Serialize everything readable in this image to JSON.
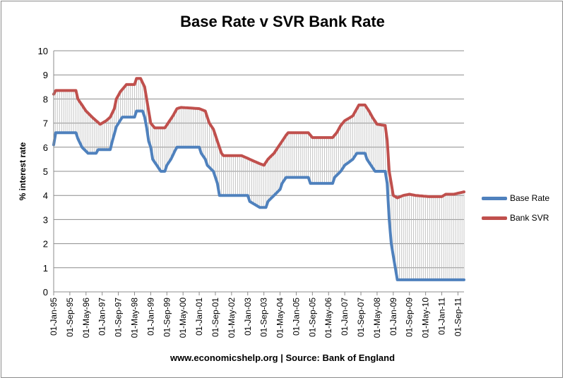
{
  "chart_data": {
    "type": "line",
    "title": "Base Rate v SVR Bank Rate",
    "ylabel": "% interest rate",
    "xlabel": "",
    "ylim": [
      0,
      10
    ],
    "yticks": [
      0,
      1,
      2,
      3,
      4,
      5,
      6,
      7,
      8,
      9,
      10
    ],
    "grid": true,
    "legend_position": "right",
    "source_note": "www.economicshelp.org | Source: Bank of England",
    "xticks": [
      "01-Jan-95",
      "01-Sep-95",
      "01-May-96",
      "01-Jan-97",
      "01-Sep-97",
      "01-May-98",
      "01-Jan-99",
      "01-Sep-99",
      "01-May-00",
      "01-Jan-01",
      "01-Sep-01",
      "01-May-02",
      "01-Jan-03",
      "01-Sep-03",
      "01-May-04",
      "01-Jan-05",
      "01-Sep-05",
      "01-May-06",
      "01-Jan-07",
      "01-Sep-07",
      "01-May-08",
      "01-Jan-09",
      "01-Sep-09",
      "01-May-10",
      "01-Jan-11",
      "01-Sep-11"
    ],
    "x_start": "1995-01",
    "x_end": "2011-12",
    "series": [
      {
        "name": "Base Rate",
        "color": "#4f81bd",
        "points": [
          [
            "1995-01",
            6.1
          ],
          [
            "1995-02",
            6.6
          ],
          [
            "1995-12",
            6.6
          ],
          [
            "1996-01",
            6.35
          ],
          [
            "1996-03",
            6.0
          ],
          [
            "1996-06",
            5.75
          ],
          [
            "1996-10",
            5.75
          ],
          [
            "1996-11",
            5.9
          ],
          [
            "1997-05",
            5.9
          ],
          [
            "1997-06",
            6.25
          ],
          [
            "1997-08",
            6.85
          ],
          [
            "1997-11",
            7.25
          ],
          [
            "1998-05",
            7.25
          ],
          [
            "1998-06",
            7.5
          ],
          [
            "1998-09",
            7.5
          ],
          [
            "1998-10",
            7.25
          ],
          [
            "1998-11",
            6.8
          ],
          [
            "1998-12",
            6.25
          ],
          [
            "1999-01",
            6.0
          ],
          [
            "1999-02",
            5.5
          ],
          [
            "1999-04",
            5.25
          ],
          [
            "1999-06",
            5.0
          ],
          [
            "1999-08",
            5.0
          ],
          [
            "1999-09",
            5.25
          ],
          [
            "1999-11",
            5.5
          ],
          [
            "2000-01",
            5.85
          ],
          [
            "2000-02",
            6.0
          ],
          [
            "2001-01",
            6.0
          ],
          [
            "2001-02",
            5.75
          ],
          [
            "2001-04",
            5.5
          ],
          [
            "2001-05",
            5.25
          ],
          [
            "2001-08",
            5.0
          ],
          [
            "2001-09",
            4.75
          ],
          [
            "2001-10",
            4.5
          ],
          [
            "2001-11",
            4.0
          ],
          [
            "2003-01",
            4.0
          ],
          [
            "2003-02",
            3.75
          ],
          [
            "2003-07",
            3.5
          ],
          [
            "2003-10",
            3.5
          ],
          [
            "2003-11",
            3.75
          ],
          [
            "2004-02",
            4.0
          ],
          [
            "2004-05",
            4.25
          ],
          [
            "2004-06",
            4.5
          ],
          [
            "2004-08",
            4.75
          ],
          [
            "2005-07",
            4.75
          ],
          [
            "2005-08",
            4.5
          ],
          [
            "2006-07",
            4.5
          ],
          [
            "2006-08",
            4.75
          ],
          [
            "2006-11",
            5.0
          ],
          [
            "2007-01",
            5.25
          ],
          [
            "2007-05",
            5.5
          ],
          [
            "2007-07",
            5.75
          ],
          [
            "2007-11",
            5.75
          ],
          [
            "2007-12",
            5.5
          ],
          [
            "2008-02",
            5.25
          ],
          [
            "2008-04",
            5.0
          ],
          [
            "2008-09",
            5.0
          ],
          [
            "2008-10",
            4.5
          ],
          [
            "2008-11",
            3.0
          ],
          [
            "2008-12",
            2.0
          ],
          [
            "2009-01",
            1.5
          ],
          [
            "2009-02",
            1.0
          ],
          [
            "2009-03",
            0.5
          ],
          [
            "2011-12",
            0.5
          ]
        ]
      },
      {
        "name": "Bank SVR",
        "color": "#c0504d",
        "points": [
          [
            "1995-01",
            8.2
          ],
          [
            "1995-02",
            8.35
          ],
          [
            "1995-12",
            8.35
          ],
          [
            "1996-01",
            8.0
          ],
          [
            "1996-03",
            7.75
          ],
          [
            "1996-05",
            7.5
          ],
          [
            "1996-08",
            7.25
          ],
          [
            "1996-10",
            7.1
          ],
          [
            "1996-12",
            6.95
          ],
          [
            "1997-03",
            7.1
          ],
          [
            "1997-05",
            7.25
          ],
          [
            "1997-07",
            7.6
          ],
          [
            "1997-08",
            8.0
          ],
          [
            "1997-10",
            8.3
          ],
          [
            "1997-12",
            8.5
          ],
          [
            "1998-01",
            8.6
          ],
          [
            "1998-05",
            8.6
          ],
          [
            "1998-06",
            8.85
          ],
          [
            "1998-08",
            8.85
          ],
          [
            "1998-10",
            8.5
          ],
          [
            "1998-11",
            8.0
          ],
          [
            "1998-12",
            7.5
          ],
          [
            "1999-01",
            7.0
          ],
          [
            "1999-03",
            6.8
          ],
          [
            "1999-08",
            6.8
          ],
          [
            "1999-10",
            7.05
          ],
          [
            "1999-12",
            7.3
          ],
          [
            "2000-02",
            7.6
          ],
          [
            "2000-04",
            7.65
          ],
          [
            "2001-01",
            7.6
          ],
          [
            "2001-04",
            7.5
          ],
          [
            "2001-06",
            7.0
          ],
          [
            "2001-08",
            6.75
          ],
          [
            "2001-10",
            6.25
          ],
          [
            "2001-12",
            5.75
          ],
          [
            "2002-01",
            5.65
          ],
          [
            "2002-10",
            5.65
          ],
          [
            "2003-02",
            5.5
          ],
          [
            "2003-06",
            5.35
          ],
          [
            "2003-09",
            5.25
          ],
          [
            "2003-11",
            5.5
          ],
          [
            "2004-02",
            5.75
          ],
          [
            "2004-04",
            6.0
          ],
          [
            "2004-06",
            6.25
          ],
          [
            "2004-08",
            6.5
          ],
          [
            "2004-09",
            6.6
          ],
          [
            "2005-07",
            6.6
          ],
          [
            "2005-09",
            6.4
          ],
          [
            "2006-07",
            6.4
          ],
          [
            "2006-09",
            6.6
          ],
          [
            "2006-11",
            6.9
          ],
          [
            "2007-01",
            7.1
          ],
          [
            "2007-05",
            7.3
          ],
          [
            "2007-07",
            7.6
          ],
          [
            "2007-08",
            7.75
          ],
          [
            "2007-11",
            7.75
          ],
          [
            "2008-01",
            7.5
          ],
          [
            "2008-03",
            7.2
          ],
          [
            "2008-05",
            6.95
          ],
          [
            "2008-09",
            6.9
          ],
          [
            "2008-10",
            6.3
          ],
          [
            "2008-11",
            5.0
          ],
          [
            "2008-12",
            4.5
          ],
          [
            "2009-01",
            4.0
          ],
          [
            "2009-03",
            3.9
          ],
          [
            "2009-06",
            4.0
          ],
          [
            "2009-09",
            4.05
          ],
          [
            "2009-12",
            4.0
          ],
          [
            "2010-07",
            3.95
          ],
          [
            "2011-01",
            3.95
          ],
          [
            "2011-03",
            4.05
          ],
          [
            "2011-07",
            4.05
          ],
          [
            "2011-12",
            4.15
          ]
        ]
      }
    ]
  }
}
